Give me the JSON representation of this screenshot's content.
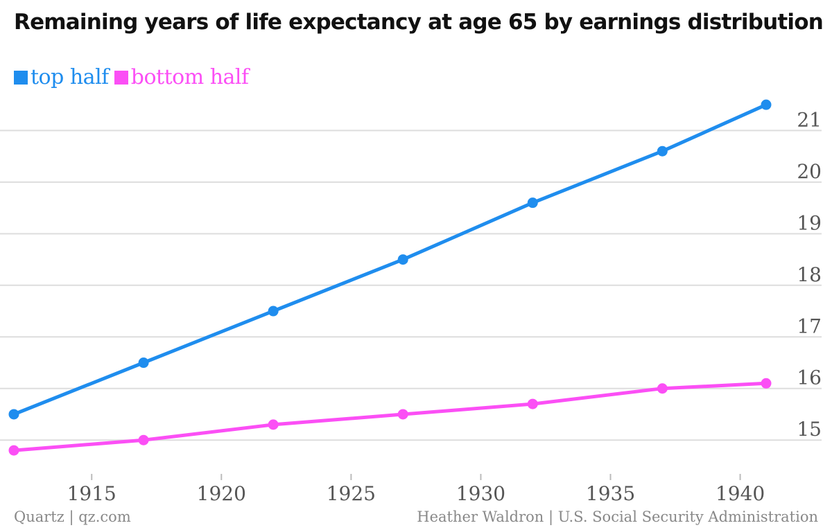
{
  "colors": {
    "top": "#1f8dee",
    "bottom": "#fb4ff5",
    "grid": "#dddddd"
  },
  "footer": {
    "left": "Quartz | qz.com",
    "right": "Heather Waldron | U.S. Social Security Administration"
  },
  "chart_data": {
    "type": "line",
    "title": "Remaining years of life expectancy at age 65 by earnings distribution",
    "x": [
      1912,
      1917,
      1922,
      1927,
      1932,
      1937,
      1941
    ],
    "series": [
      {
        "name": "top half",
        "values": [
          15.5,
          16.5,
          17.5,
          18.5,
          19.6,
          20.6,
          21.5
        ]
      },
      {
        "name": "bottom half",
        "values": [
          14.8,
          15.0,
          15.3,
          15.5,
          15.7,
          16.0,
          16.1
        ]
      }
    ],
    "x_ticks": [
      "1915",
      "1920",
      "1925",
      "1930",
      "1935",
      "1940"
    ],
    "y_ticks": [
      "15",
      "16",
      "17",
      "18",
      "19",
      "20",
      "21"
    ],
    "xlim": [
      1912,
      1941
    ],
    "ylim": [
      14.6,
      21.65
    ],
    "grid": true,
    "y_axis_position": "right",
    "legend": "top-left"
  }
}
